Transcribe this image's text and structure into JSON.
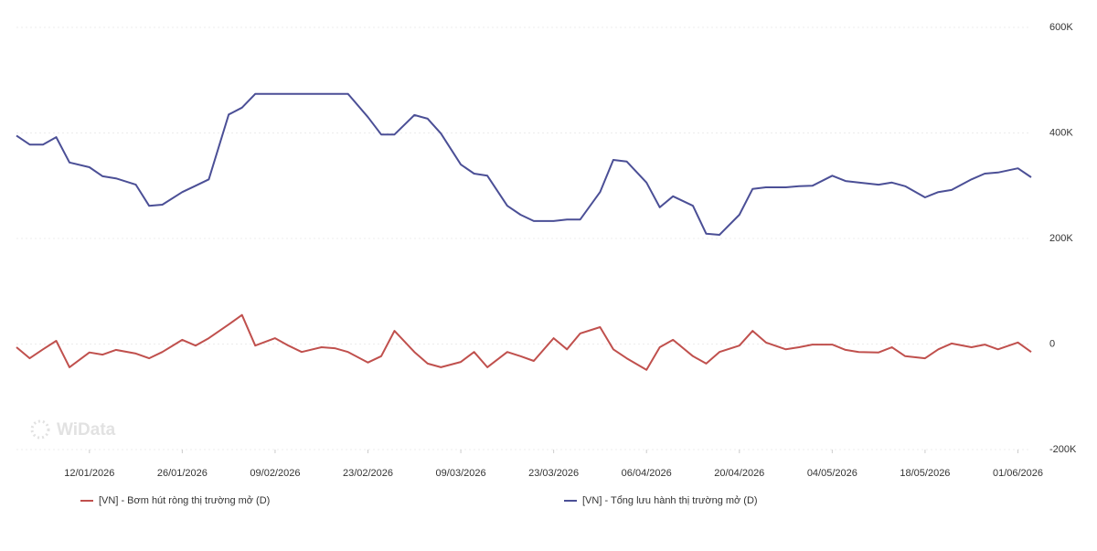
{
  "chart_data": {
    "type": "line",
    "watermark": "WiData",
    "x": [
      "01/01/2026",
      "03/01/2026",
      "05/01/2026",
      "07/01/2026",
      "09/01/2026",
      "12/01/2026",
      "14/01/2026",
      "16/01/2026",
      "19/01/2026",
      "21/01/2026",
      "23/01/2026",
      "26/01/2026",
      "28/01/2026",
      "30/01/2026",
      "02/02/2026",
      "04/02/2026",
      "06/02/2026",
      "09/02/2026",
      "11/02/2026",
      "13/02/2026",
      "16/02/2026",
      "18/02/2026",
      "20/02/2026",
      "23/02/2026",
      "25/02/2026",
      "27/02/2026",
      "02/03/2026",
      "04/03/2026",
      "06/03/2026",
      "09/03/2026",
      "11/03/2026",
      "13/03/2026",
      "16/03/2026",
      "18/03/2026",
      "20/03/2026",
      "23/03/2026",
      "25/03/2026",
      "27/03/2026",
      "30/03/2026",
      "01/04/2026",
      "03/04/2026",
      "06/04/2026",
      "08/04/2026",
      "10/04/2026",
      "13/04/2026",
      "15/04/2026",
      "17/04/2026",
      "20/04/2026",
      "22/04/2026",
      "24/04/2026",
      "27/04/2026",
      "29/04/2026",
      "01/05/2026",
      "04/05/2026",
      "06/05/2026",
      "08/05/2026",
      "11/05/2026",
      "13/05/2026",
      "15/05/2026",
      "18/05/2026",
      "20/05/2026",
      "22/05/2026",
      "25/05/2026",
      "27/05/2026",
      "29/05/2026",
      "01/06/2026",
      "03/06/2026"
    ],
    "xlim": [
      "01/01/2026",
      "03/06/2026"
    ],
    "xticks": [
      "12/01/2026",
      "26/01/2026",
      "09/02/2026",
      "23/02/2026",
      "09/03/2026",
      "23/03/2026",
      "06/04/2026",
      "20/04/2026",
      "04/05/2026",
      "18/05/2026",
      "01/06/2026"
    ],
    "ylim": [
      -200000,
      600000
    ],
    "yticks": [
      {
        "value": -200000,
        "label": "-200K"
      },
      0,
      {
        "value": 200000,
        "label": "200K"
      },
      {
        "value": 400000,
        "label": "400K"
      },
      {
        "value": 600000,
        "label": "600K"
      }
    ],
    "grid": true,
    "legend": "bottom",
    "series": [
      {
        "name": "[VN] - Bơm hút ròng thị trường mở (D)",
        "color": "#c0504d",
        "values": [
          -6000,
          -27000,
          -10000,
          6000,
          -44000,
          -16000,
          -20000,
          -11000,
          -18000,
          -27000,
          -15000,
          8000,
          -3000,
          11000,
          37000,
          55000,
          -3000,
          11000,
          -3000,
          -15000,
          -6000,
          -8000,
          -15000,
          -35000,
          -23000,
          25000,
          -15000,
          -37000,
          -44000,
          -34000,
          -15000,
          -44000,
          -15000,
          -23000,
          -32000,
          11000,
          -10000,
          20000,
          32000,
          -10000,
          -27000,
          -49000,
          -6000,
          8000,
          -23000,
          -37000,
          -15000,
          -3000,
          25000,
          3000,
          -10000,
          -6000,
          -1000,
          -1000,
          -11000,
          -15000,
          -16000,
          -6000,
          -23000,
          -27000,
          -10000,
          1000,
          -6000,
          -1000,
          -10000,
          3000,
          -15000
        ]
      },
      {
        "name": "[VN] - Tổng lưu hành thị trường mở (D)",
        "color": "#4b4f96",
        "values": [
          395000,
          378000,
          378000,
          392000,
          344000,
          335000,
          318000,
          314000,
          302000,
          262000,
          264000,
          288000,
          300000,
          312000,
          435000,
          448000,
          474000,
          474000,
          474000,
          474000,
          474000,
          474000,
          474000,
          430000,
          397000,
          397000,
          434000,
          427000,
          399000,
          340000,
          323000,
          319000,
          262000,
          245000,
          233000,
          233000,
          236000,
          236000,
          288000,
          349000,
          346000,
          306000,
          259000,
          280000,
          262000,
          209000,
          207000,
          245000,
          294000,
          297000,
          297000,
          299000,
          300000,
          319000,
          309000,
          306000,
          302000,
          306000,
          299000,
          278000,
          288000,
          292000,
          312000,
          323000,
          325000,
          333000,
          316000
        ]
      }
    ]
  }
}
